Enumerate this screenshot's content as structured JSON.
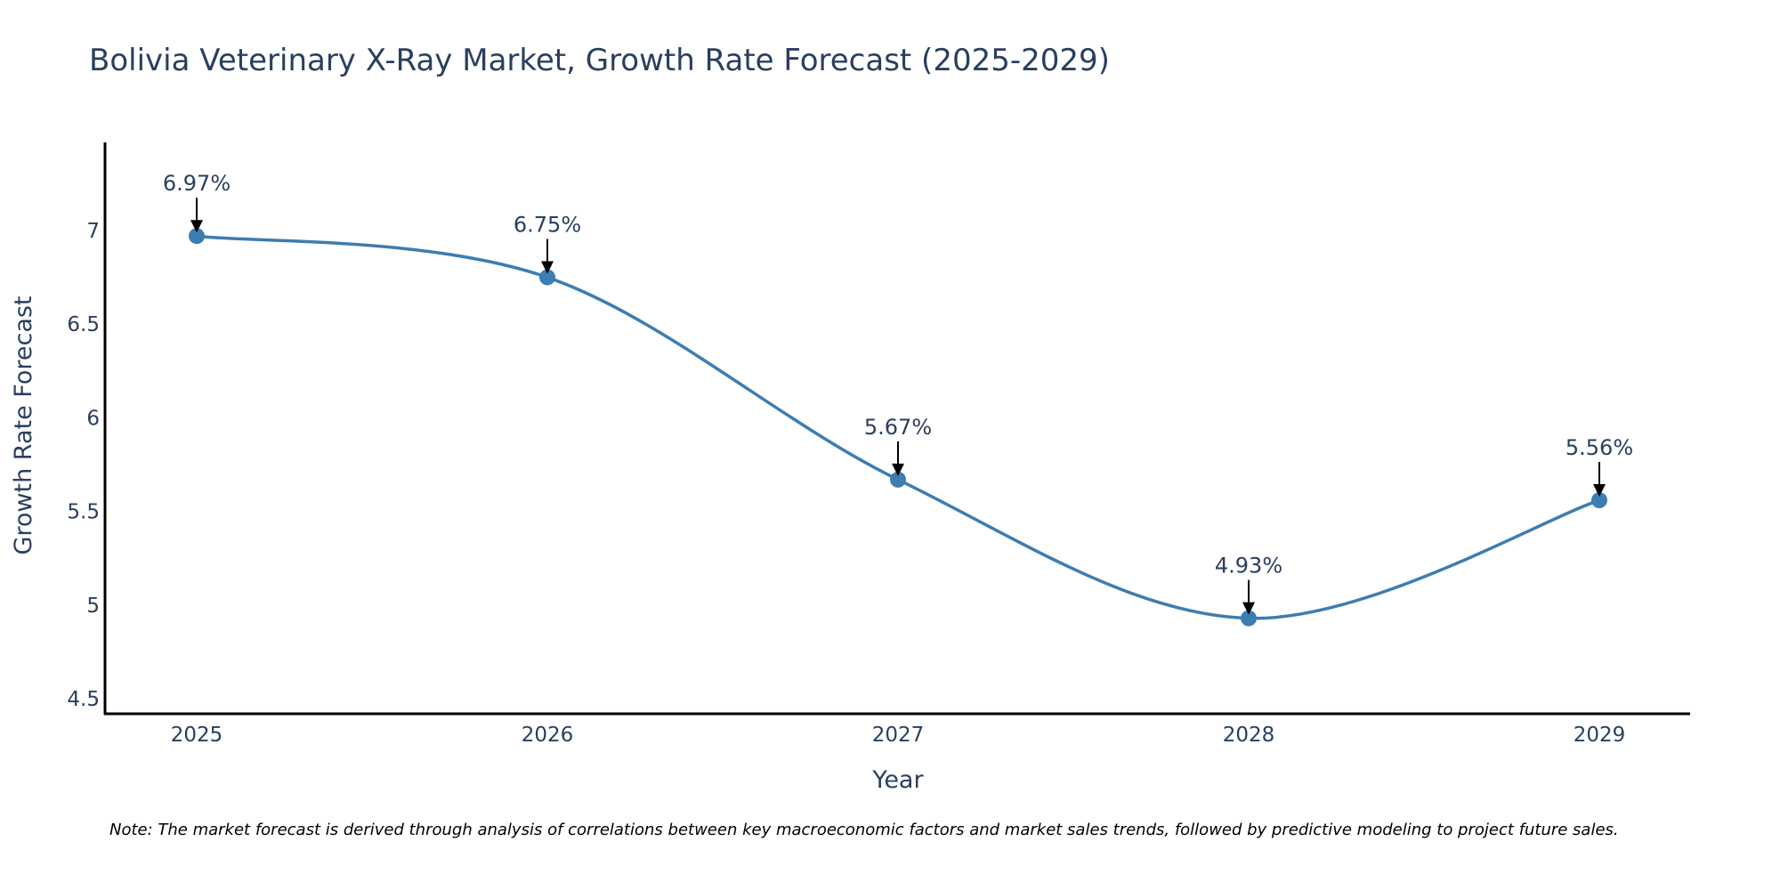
{
  "chart_data": {
    "type": "line",
    "title": "Bolivia Veterinary X-Ray Market, Growth Rate Forecast (2025-2029)",
    "xlabel": "Year",
    "ylabel": "Growth Rate Forecast",
    "categories": [
      "2025",
      "2026",
      "2027",
      "2028",
      "2029"
    ],
    "series": [
      {
        "name": "Growth Rate Forecast",
        "values": [
          6.97,
          6.75,
          5.67,
          4.93,
          5.56
        ],
        "labels": [
          "6.97%",
          "6.75%",
          "5.67%",
          "4.93%",
          "5.56%"
        ]
      }
    ],
    "yticks": [
      4.5,
      5,
      5.5,
      6,
      6.5,
      7
    ],
    "ytick_labels": [
      "4.5",
      "5",
      "5.5",
      "6",
      "6.5",
      "7"
    ],
    "ylim": [
      4.42,
      7.47
    ],
    "grid": false,
    "line_shape": "spline",
    "note": "Note: The market forecast is derived through analysis of correlations between key macroeconomic factors and market sales trends, followed by predictive modeling to project future sales."
  },
  "colors": {
    "line": "#3d7db0",
    "marker": "#3d7db0",
    "axis": "#000000",
    "text": "#2a3f5f",
    "arrow": "#000000"
  }
}
